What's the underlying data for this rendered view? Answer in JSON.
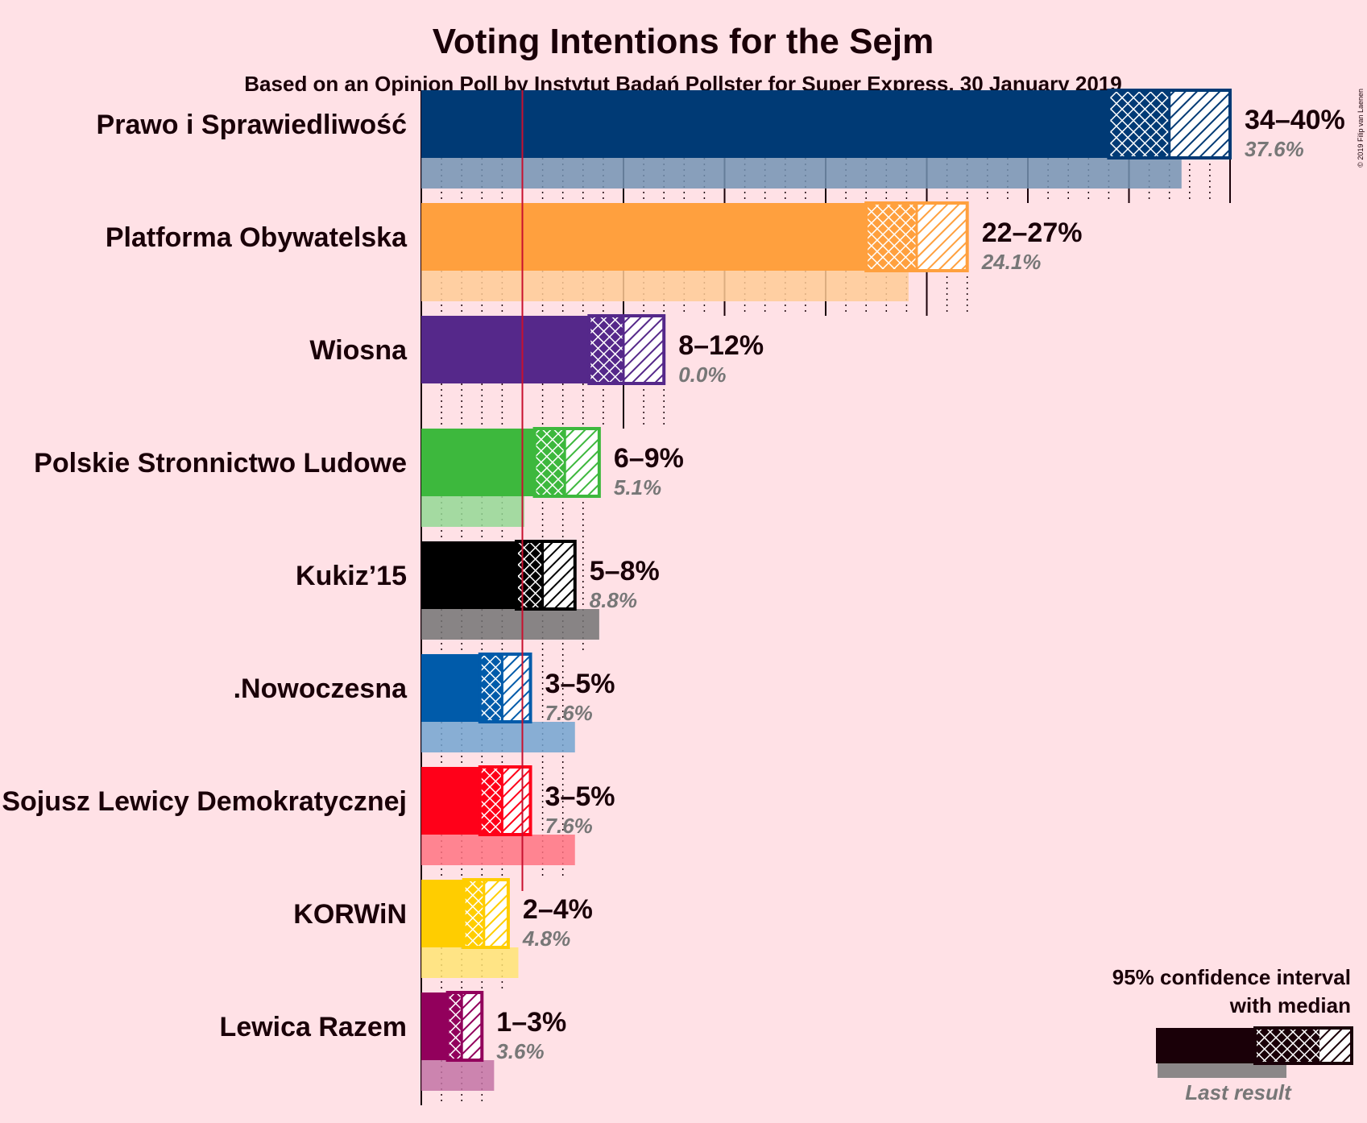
{
  "chart_data": {
    "type": "bar",
    "title": "Voting Intentions for the Sejm",
    "subtitle": "Based on an Opinion Poll by Instytut Badań Pollster for Super Express, 30 January 2019",
    "copyright": "© 2019 Filip van Laenen",
    "threshold": 5,
    "parties": [
      {
        "name": "Prawo i Sprawiedliwość",
        "low": 34,
        "median": 37,
        "high": 40,
        "interval_label": "34–40%",
        "last_result": 37.6,
        "last_label": "37.6%",
        "color": "#003A75"
      },
      {
        "name": "Platforma Obywatelska",
        "low": 22,
        "median": 24.5,
        "high": 27,
        "interval_label": "22–27%",
        "last_result": 24.1,
        "last_label": "24.1%",
        "color": "#FFA03E"
      },
      {
        "name": "Wiosna",
        "low": 8.3,
        "median": 10,
        "high": 12,
        "interval_label": "8–12%",
        "last_result": 0.0,
        "last_label": "0.0%",
        "color": "#55288A"
      },
      {
        "name": "Polskie Stronnictwo Ludowe",
        "low": 5.6,
        "median": 7.1,
        "high": 8.8,
        "interval_label": "6–9%",
        "last_result": 5.1,
        "last_label": "5.1%",
        "color": "#3DB83D"
      },
      {
        "name": "Kukiz’15",
        "low": 4.7,
        "median": 6,
        "high": 7.6,
        "interval_label": "5–8%",
        "last_result": 8.8,
        "last_label": "8.8%",
        "color": "#000000"
      },
      {
        "name": ".Nowoczesna",
        "low": 2.9,
        "median": 4,
        "high": 5.4,
        "interval_label": "3–5%",
        "last_result": 7.6,
        "last_label": "7.6%",
        "color": "#005BAA"
      },
      {
        "name": "Sojusz Lewicy Demokratycznej",
        "low": 2.9,
        "median": 4,
        "high": 5.4,
        "interval_label": "3–5%",
        "last_result": 7.6,
        "last_label": "7.6%",
        "color": "#FF0019"
      },
      {
        "name": "KORWiN",
        "low": 2.1,
        "median": 3.1,
        "high": 4.3,
        "interval_label": "2–4%",
        "last_result": 4.8,
        "last_label": "4.8%",
        "color": "#FFCD00"
      },
      {
        "name": "Lewica Razem",
        "low": 1.3,
        "median": 2,
        "high": 3,
        "interval_label": "1–3%",
        "last_result": 3.6,
        "last_label": "3.6%",
        "color": "#92005C"
      }
    ],
    "legend": {
      "title_line1": "95% confidence interval",
      "title_line2": "with median",
      "last_result_label": "Last result"
    }
  }
}
